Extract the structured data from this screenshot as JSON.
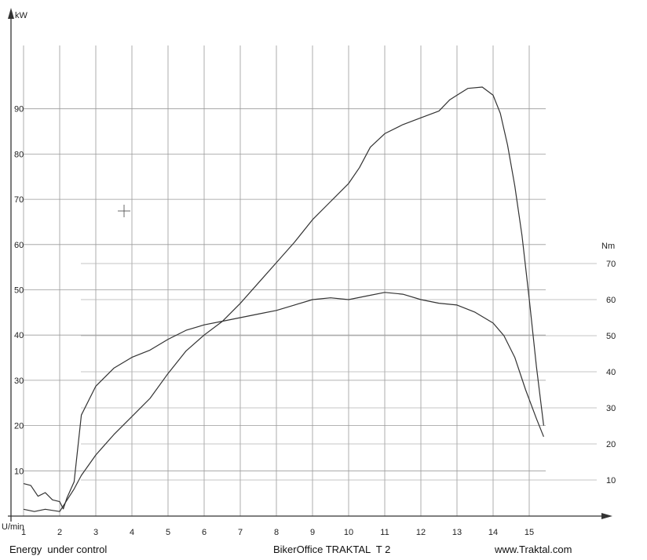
{
  "footer": {
    "left": "Energy  under control",
    "center": "BikerOffice TRAKTAL  T 2",
    "right": "www.Traktal.com"
  },
  "chart_data": {
    "type": "line",
    "xlabel": "U/min",
    "ylabel_left": "kW",
    "ylabel_right": "Nm",
    "x_ticks": [
      1,
      2,
      3,
      4,
      5,
      6,
      7,
      8,
      9,
      10,
      11,
      12,
      13,
      14,
      15
    ],
    "x_tick_labels": [
      "1",
      "2",
      "3",
      "4",
      "5",
      "6",
      "7",
      "8",
      "9",
      "10",
      "11",
      "12",
      "13",
      "14",
      "15"
    ],
    "xlim": [
      1,
      16
    ],
    "y_left_ticks": [
      10,
      20,
      30,
      40,
      50,
      60,
      70,
      80,
      90
    ],
    "y_left_tick_labels": [
      "10",
      "20",
      "30",
      "40",
      "50",
      "60",
      "70",
      "80",
      "90"
    ],
    "ylim_left": [
      0,
      105
    ],
    "y_right_ticks": [
      10,
      20,
      30,
      40,
      50,
      60,
      70
    ],
    "y_right_tick_labels": [
      "10",
      "20",
      "30",
      "40",
      "50",
      "60",
      "70"
    ],
    "ylim_right": [
      0,
      70
    ],
    "grid": true,
    "series": [
      {
        "axis": "left",
        "color": "#333333",
        "x": [
          1.0,
          1.3,
          1.6,
          2.0,
          2.2,
          2.4,
          2.6,
          3.0,
          3.5,
          4.0,
          4.5,
          5.0,
          5.5,
          6.0,
          6.5,
          7.0,
          7.5,
          8.0,
          8.5,
          9.0,
          9.5,
          10.0,
          10.3,
          10.6,
          11.0,
          11.5,
          12.0,
          12.5,
          12.8,
          13.0,
          13.3,
          13.7,
          14.0,
          14.2,
          14.4,
          14.6,
          14.8,
          15.0,
          15.2,
          15.4
        ],
        "y": [
          1.5,
          1.0,
          1.5,
          1.0,
          3.5,
          6.0,
          9.0,
          13.5,
          18.0,
          22.0,
          26.0,
          31.5,
          36.5,
          40.0,
          43.0,
          47.0,
          51.5,
          56.0,
          60.5,
          65.5,
          69.5,
          73.5,
          77.0,
          81.5,
          84.5,
          86.5,
          88.0,
          89.5,
          92.0,
          93.0,
          94.5,
          94.8,
          93.0,
          89.0,
          82.0,
          73.0,
          62.0,
          48.0,
          33.0,
          20.0
        ]
      },
      {
        "axis": "right",
        "color": "#333333",
        "x": [
          1.0,
          1.2,
          1.4,
          1.6,
          1.8,
          2.0,
          2.1,
          2.2,
          2.4,
          2.6,
          3.0,
          3.5,
          4.0,
          4.5,
          5.0,
          5.5,
          6.0,
          6.5,
          7.0,
          7.5,
          8.0,
          8.5,
          9.0,
          9.5,
          10.0,
          10.5,
          11.0,
          11.5,
          12.0,
          12.5,
          13.0,
          13.5,
          14.0,
          14.3,
          14.6,
          14.9,
          15.2,
          15.4
        ],
        "y": [
          9.0,
          8.5,
          5.5,
          6.5,
          4.5,
          4.0,
          2.0,
          5.0,
          9.5,
          28.0,
          36.0,
          41.0,
          44.0,
          46.0,
          49.0,
          51.5,
          53.0,
          54.0,
          55.0,
          56.0,
          57.0,
          58.5,
          60.0,
          60.5,
          60.0,
          61.0,
          62.0,
          61.5,
          60.0,
          59.0,
          58.5,
          56.5,
          53.5,
          50.0,
          44.0,
          35.0,
          27.0,
          22.0
        ]
      }
    ]
  }
}
